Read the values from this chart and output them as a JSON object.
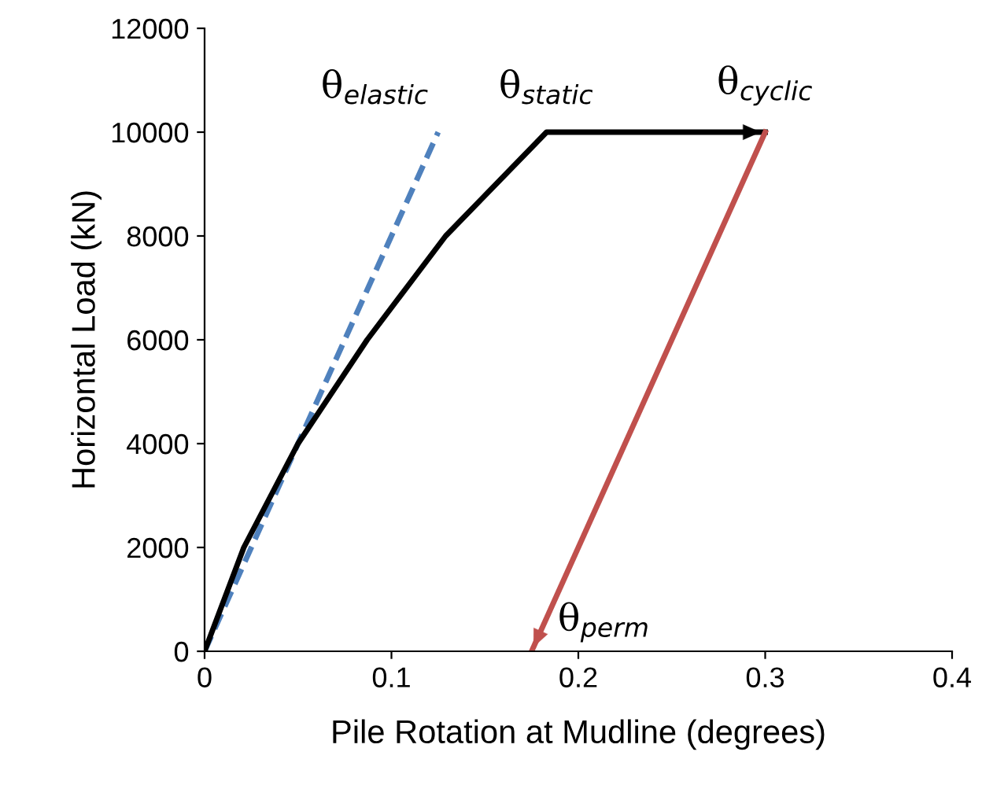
{
  "chart_data": {
    "type": "line",
    "xlabel": "Pile Rotation at Mudline (degrees)",
    "ylabel": "Horizontal Load (kN)",
    "xlim": [
      0,
      0.4
    ],
    "xticks": [
      0,
      0.1,
      0.2,
      0.3,
      0.4
    ],
    "ylim": [
      0,
      12000
    ],
    "yticks": [
      0,
      2000,
      4000,
      6000,
      8000,
      10000,
      12000
    ],
    "grid": false,
    "legend": false,
    "marker": "none",
    "series": [
      {
        "color": "#4f81bd",
        "line_style": "dashed",
        "x": [
          0,
          0.125
        ],
        "values": [
          0,
          10000
        ]
      },
      {
        "color": "#000000",
        "line_style": "solid",
        "x": [
          0,
          0.021,
          0.05,
          0.087,
          0.129,
          0.183,
          0.3
        ],
        "values": [
          0,
          2000,
          4000,
          6000,
          8000,
          10000,
          10000
        ]
      },
      {
        "color": "#c0504d",
        "line_style": "solid",
        "x": [
          0.3,
          0.175
        ],
        "values": [
          10000,
          0
        ]
      }
    ],
    "annotations": [
      {
        "text": "θ$_{elastic}$",
        "x": 0.125,
        "y": 10000
      },
      {
        "text": "θ$_{static}$",
        "x": 0.183,
        "y": 10000
      },
      {
        "text": "θ$_{cyclic}$",
        "x": 0.3,
        "y": 10000
      },
      {
        "text": "θ$_{perm}$",
        "x": 0.175,
        "y": 0
      }
    ]
  }
}
